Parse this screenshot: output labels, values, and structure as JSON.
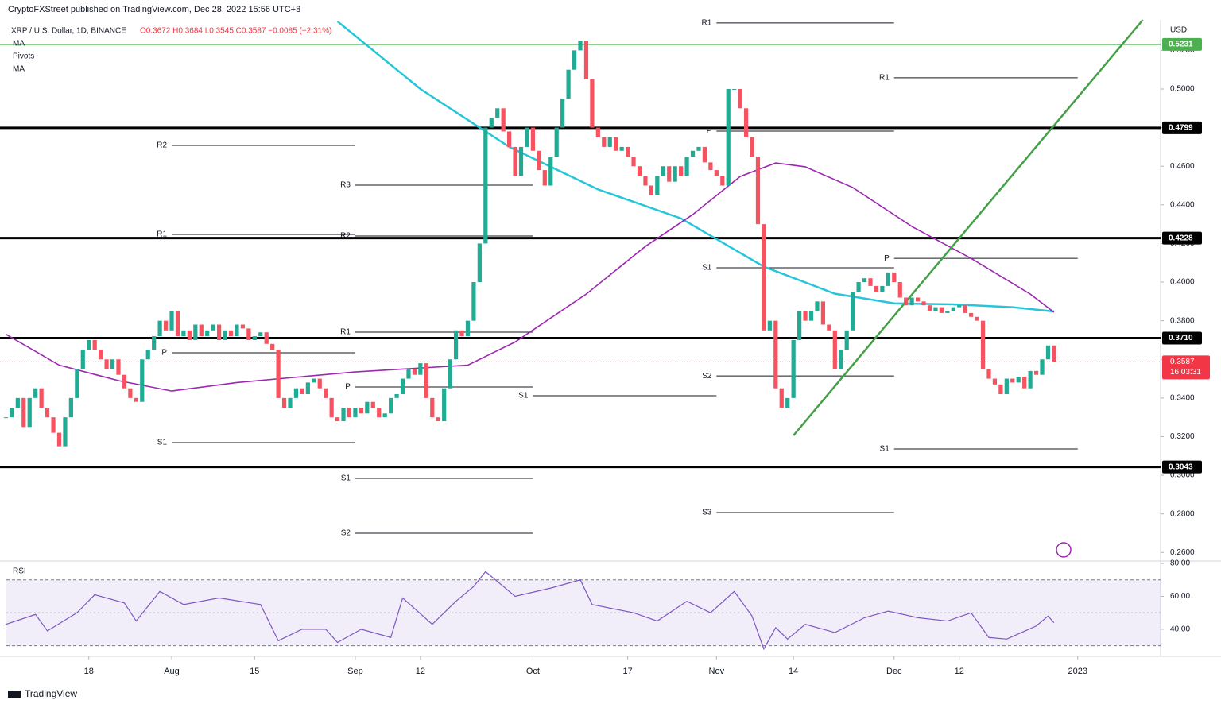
{
  "header": {
    "publisher": "CryptoFXStreet published on TradingView.com, Dec 28, 2022 15:56 UTC+8",
    "footer": "TradingView"
  },
  "chart_data": {
    "type": "candlestick",
    "symbol": "XRP / U.S. Dollar, 1D, BINANCE",
    "ohlc_text": "O0.3672 H0.3684 L0.3545 C0.3587 −0.0085 (−2.31%)",
    "currency": "USD",
    "pivots_label": "Pivots",
    "up_color": "#22ab94",
    "down_color": "#f7525f",
    "close": [
      0.33,
      0.335,
      0.34,
      0.325,
      0.34,
      0.345,
      0.335,
      0.33,
      0.322,
      0.315,
      0.33,
      0.34,
      0.355,
      0.365,
      0.37,
      0.365,
      0.36,
      0.355,
      0.36,
      0.352,
      0.345,
      0.34,
      0.338,
      0.36,
      0.365,
      0.372,
      0.38,
      0.375,
      0.385,
      0.372,
      0.375,
      0.37,
      0.378,
      0.372,
      0.375,
      0.378,
      0.37,
      0.375,
      0.372,
      0.378,
      0.376,
      0.37,
      0.372,
      0.374,
      0.368,
      0.365,
      0.34,
      0.335,
      0.34,
      0.345,
      0.342,
      0.348,
      0.35,
      0.345,
      0.34,
      0.33,
      0.328,
      0.335,
      0.33,
      0.335,
      0.332,
      0.338,
      0.335,
      0.33,
      0.332,
      0.34,
      0.342,
      0.35,
      0.355,
      0.352,
      0.358,
      0.34,
      0.33,
      0.328,
      0.345,
      0.36,
      0.375,
      0.372,
      0.38,
      0.4,
      0.42,
      0.48,
      0.485,
      0.49,
      0.478,
      0.47,
      0.455,
      0.47,
      0.48,
      0.468,
      0.458,
      0.45,
      0.465,
      0.48,
      0.495,
      0.51,
      0.52,
      0.525,
      0.505,
      0.48,
      0.475,
      0.47,
      0.475,
      0.468,
      0.47,
      0.465,
      0.46,
      0.455,
      0.45,
      0.445,
      0.455,
      0.46,
      0.452,
      0.46,
      0.455,
      0.465,
      0.468,
      0.47,
      0.462,
      0.458,
      0.455,
      0.45,
      0.5,
      0.5,
      0.49,
      0.475,
      0.465,
      0.43,
      0.375,
      0.38,
      0.345,
      0.335,
      0.34,
      0.37,
      0.385,
      0.38,
      0.385,
      0.39,
      0.378,
      0.375,
      0.355,
      0.365,
      0.375,
      0.395,
      0.4,
      0.402,
      0.398,
      0.395,
      0.398,
      0.405,
      0.4,
      0.392,
      0.388,
      0.392,
      0.39,
      0.388,
      0.385,
      0.387,
      0.384,
      0.385,
      0.387,
      0.388,
      0.384,
      0.382,
      0.38,
      0.355,
      0.35,
      0.347,
      0.342,
      0.35,
      0.348,
      0.351,
      0.345,
      0.354,
      0.352,
      0.36,
      0.3672,
      0.3587
    ],
    "ylim": [
      0.256,
      0.5358
    ],
    "yticks": [
      {
        "value": 0.26,
        "label": "0.2600"
      },
      {
        "value": 0.28,
        "label": "0.2800"
      },
      {
        "value": 0.3,
        "label": "0.3000"
      },
      {
        "value": 0.32,
        "label": "0.3200"
      },
      {
        "value": 0.34,
        "label": "0.3400"
      },
      {
        "value": 0.36,
        "label": "0.3600"
      },
      {
        "value": 0.38,
        "label": "0.3800"
      },
      {
        "value": 0.4,
        "label": "0.4000"
      },
      {
        "value": 0.42,
        "label": "0.4200"
      },
      {
        "value": 0.44,
        "label": "0.4400"
      },
      {
        "value": 0.46,
        "label": "0.4600"
      },
      {
        "value": 0.48,
        "label": "0.4800"
      },
      {
        "value": 0.5,
        "label": "0.5000"
      },
      {
        "value": 0.52,
        "label": "0.5200"
      }
    ],
    "xlim": [
      -1,
      195
    ],
    "xticks": [
      {
        "value": 14,
        "label": "18"
      },
      {
        "value": 28,
        "label": "Aug"
      },
      {
        "value": 42,
        "label": "15"
      },
      {
        "value": 59,
        "label": "Sep"
      },
      {
        "value": 70,
        "label": "12"
      },
      {
        "value": 89,
        "label": "Oct"
      },
      {
        "value": 105,
        "label": "17"
      },
      {
        "value": 120,
        "label": "Nov"
      },
      {
        "value": 133,
        "label": "14"
      },
      {
        "value": 150,
        "label": "Dec"
      },
      {
        "value": 161,
        "label": "12"
      },
      {
        "value": 181,
        "label": "2023"
      }
    ],
    "levels": [
      {
        "value": 0.5231,
        "label": "0.5231",
        "color": "#4caf50"
      },
      {
        "value": 0.4799,
        "label": "0.4799",
        "color": "#000000"
      },
      {
        "value": 0.4228,
        "label": "0.4228",
        "color": "#000000"
      },
      {
        "value": 0.371,
        "label": "0.3710",
        "color": "#000000"
      },
      {
        "value": 0.3043,
        "label": "0.3043",
        "color": "#000000"
      }
    ],
    "last_price": {
      "value": 0.3587,
      "label": "0.3587",
      "countdown": "16:03:31",
      "color": "#f23645"
    },
    "pivots": [
      {
        "label": "R2",
        "value": 0.4708,
        "x": [
          28,
          59
        ]
      },
      {
        "label": "R1",
        "value": 0.4247,
        "x": [
          28,
          59
        ]
      },
      {
        "label": "P",
        "value": 0.3634,
        "x": [
          28,
          59
        ]
      },
      {
        "label": "S1",
        "value": 0.3169,
        "x": [
          28,
          59
        ]
      },
      {
        "label": "R3",
        "value": 0.4502,
        "x": [
          59,
          89
        ]
      },
      {
        "label": "R2",
        "value": 0.4239,
        "x": [
          59,
          89
        ]
      },
      {
        "label": "R1",
        "value": 0.3741,
        "x": [
          59,
          89
        ]
      },
      {
        "label": "P",
        "value": 0.3457,
        "x": [
          59,
          89
        ]
      },
      {
        "label": "S1",
        "value": 0.2984,
        "x": [
          59,
          89
        ]
      },
      {
        "label": "S2",
        "value": 0.27,
        "x": [
          59,
          89
        ]
      },
      {
        "label": "S1",
        "value": 0.3412,
        "x": [
          89,
          120
        ]
      },
      {
        "label": "R1",
        "value": 0.5342,
        "x": [
          120,
          150
        ]
      },
      {
        "label": "P",
        "value": 0.4782,
        "x": [
          120,
          150
        ]
      },
      {
        "label": "S1",
        "value": 0.4074,
        "x": [
          120,
          150
        ]
      },
      {
        "label": "S2",
        "value": 0.3514,
        "x": [
          120,
          150
        ]
      },
      {
        "label": "S3",
        "value": 0.2807,
        "x": [
          120,
          150
        ]
      },
      {
        "label": "R1",
        "value": 0.5058,
        "x": [
          150,
          181
        ]
      },
      {
        "label": "P",
        "value": 0.4123,
        "x": [
          150,
          181
        ]
      },
      {
        "label": "S1",
        "value": 0.3136,
        "x": [
          150,
          181
        ]
      }
    ],
    "moving_averages": [
      {
        "name": "MA",
        "color": "#26c6da",
        "x": [
          56,
          70,
          85,
          100,
          114,
          128,
          140,
          150,
          160,
          170,
          177
        ],
        "values": [
          0.535,
          0.5,
          0.47,
          0.448,
          0.433,
          0.408,
          0.394,
          0.389,
          0.3885,
          0.387,
          0.3848
        ]
      },
      {
        "name": "MA",
        "color": "#9c27b0",
        "x": [
          0,
          9,
          19,
          28,
          39,
          59,
          78,
          86,
          98,
          108,
          116,
          124,
          130,
          135,
          143,
          153,
          163,
          173,
          177
        ],
        "values": [
          0.373,
          0.357,
          0.349,
          0.3436,
          0.348,
          0.3535,
          0.357,
          0.369,
          0.3938,
          0.4185,
          0.435,
          0.4547,
          0.4617,
          0.4597,
          0.449,
          0.4288,
          0.4123,
          0.3938,
          0.3844
        ]
      }
    ],
    "trendline": {
      "color": "#43a047",
      "x": [
        133,
        192
      ],
      "values": [
        0.3206,
        0.5358
      ]
    },
    "rsi": {
      "name": "RSI",
      "color": "#7e57c2",
      "ylim": [
        24.5,
        80.5
      ],
      "band": [
        30,
        70
      ],
      "mid": 50,
      "yticks": [
        {
          "value": 40,
          "label": "40.00"
        },
        {
          "value": 60,
          "label": "60.00"
        },
        {
          "value": 80,
          "label": "80.00"
        }
      ],
      "x": [
        0,
        5,
        7,
        12,
        15,
        20,
        22,
        26,
        30,
        36,
        43,
        46,
        50,
        54,
        56,
        60,
        65,
        67,
        72,
        76,
        79,
        81,
        86,
        92,
        97,
        99,
        106,
        110,
        115,
        119,
        123,
        126,
        128,
        130,
        132,
        135,
        140,
        145,
        149,
        154,
        159,
        163,
        166,
        169,
        174,
        176,
        177
      ],
      "values": [
        43,
        49,
        39,
        50,
        61,
        56,
        45,
        63,
        55,
        59,
        55,
        33,
        40,
        40,
        32,
        40,
        35,
        59,
        43,
        57,
        66,
        75,
        60,
        65,
        70,
        55,
        50,
        45,
        57,
        50,
        63,
        48,
        28,
        41,
        34,
        43,
        38,
        47,
        51,
        47,
        45,
        50,
        35,
        34,
        42,
        48,
        44
      ]
    }
  }
}
